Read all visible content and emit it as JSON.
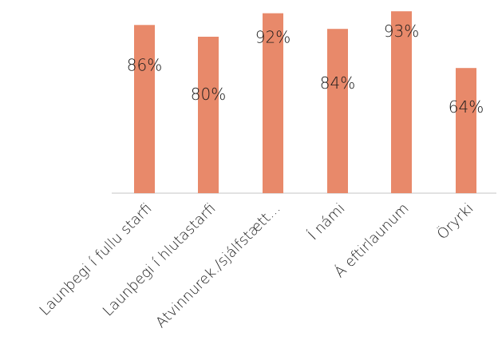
{
  "chart_data": {
    "type": "bar",
    "categories": [
      "Launþegi í fullu starfi",
      "Launþegi í hlutastarfi",
      "Atvinnurek./sjálfstætt...",
      "Í námi",
      "Á eftirlaunum",
      "Öryrki"
    ],
    "values": [
      86,
      80,
      92,
      84,
      93,
      64
    ],
    "value_labels": [
      "86%",
      "80%",
      "92%",
      "84%",
      "93%",
      "64%"
    ],
    "ylim": [
      0,
      100
    ],
    "grid": false,
    "legend": "none",
    "bar_color": "#E8896A",
    "axis_color": "#d9d9d9"
  }
}
